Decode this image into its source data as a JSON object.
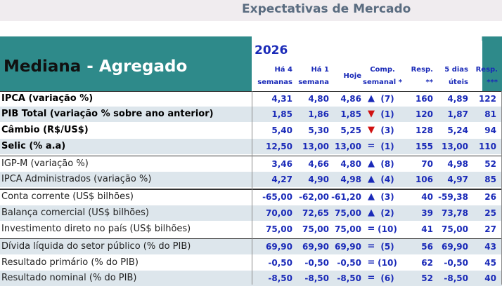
{
  "header": {
    "title": "Expectativas de Mercado",
    "mediana_prefix": "Mediana",
    "dash": "-",
    "agregado": "Agregado",
    "year": "2026",
    "columns": [
      {
        "line1": "Há 4",
        "line2": "semanas"
      },
      {
        "line1": "Há 1",
        "line2": "semana"
      },
      {
        "line1": "Hoje",
        "line2": ""
      },
      {
        "line1": "Comp.",
        "line2": "semanal *"
      },
      {
        "line1": "Resp.",
        "line2": "**"
      },
      {
        "line1": "5 dias",
        "line2": "úteis"
      },
      {
        "line1": "Resp.",
        "line2": "***"
      }
    ]
  },
  "colors": {
    "teal": "#2e8a8a",
    "value_blue": "#1a2ab8",
    "row_shade": "#dde6ec",
    "arrow_up": "#1a2ab8",
    "arrow_down": "#d01010"
  },
  "rows": [
    {
      "label": "IPCA (variação %)",
      "h4": "4,31",
      "h1": "4,80",
      "hoje": "4,86",
      "trend": "up",
      "comp": "(7)",
      "resp": "160",
      "d5": "4,89",
      "resp2": "122"
    },
    {
      "label": "PIB Total (variação % sobre ano anterior)",
      "h4": "1,85",
      "h1": "1,86",
      "hoje": "1,85",
      "trend": "down",
      "comp": "(1)",
      "resp": "120",
      "d5": "1,87",
      "resp2": "81"
    },
    {
      "label": "Câmbio (R$/US$)",
      "h4": "5,40",
      "h1": "5,30",
      "hoje": "5,25",
      "trend": "down",
      "comp": "(3)",
      "resp": "128",
      "d5": "5,24",
      "resp2": "94"
    },
    {
      "label": "Selic (% a.a)",
      "h4": "12,50",
      "h1": "13,00",
      "hoje": "13,00",
      "trend": "eq",
      "comp": "(1)",
      "resp": "155",
      "d5": "13,00",
      "resp2": "110"
    },
    {
      "label": "IGP-M (variação %)",
      "h4": "3,46",
      "h1": "4,66",
      "hoje": "4,80",
      "trend": "up",
      "comp": "(8)",
      "resp": "70",
      "d5": "4,98",
      "resp2": "52"
    },
    {
      "label": "IPCA Administrados (variação %)",
      "h4": "4,27",
      "h1": "4,90",
      "hoje": "4,98",
      "trend": "up",
      "comp": "(4)",
      "resp": "106",
      "d5": "4,97",
      "resp2": "85"
    },
    {
      "label": "Conta corrente (US$ bilhões)",
      "h4": "-65,00",
      "h1": "-62,00",
      "hoje": "-61,20",
      "trend": "up",
      "comp": "(3)",
      "resp": "40",
      "d5": "-59,38",
      "resp2": "26"
    },
    {
      "label": "Balança comercial (US$ bilhões)",
      "h4": "70,00",
      "h1": "72,65",
      "hoje": "75,00",
      "trend": "up",
      "comp": "(2)",
      "resp": "39",
      "d5": "73,78",
      "resp2": "25"
    },
    {
      "label": "Investimento direto no país (US$ bilhões)",
      "h4": "75,00",
      "h1": "75,00",
      "hoje": "75,00",
      "trend": "eq",
      "comp": "(10)",
      "resp": "41",
      "d5": "75,00",
      "resp2": "27"
    },
    {
      "label": "Dívida líquida do setor público (% do PIB)",
      "h4": "69,90",
      "h1": "69,90",
      "hoje": "69,90",
      "trend": "eq",
      "comp": "(5)",
      "resp": "56",
      "d5": "69,90",
      "resp2": "43"
    },
    {
      "label": "Resultado primário (% do PIB)",
      "h4": "-0,50",
      "h1": "-0,50",
      "hoje": "-0,50",
      "trend": "eq",
      "comp": "(10)",
      "resp": "62",
      "d5": "-0,50",
      "resp2": "45"
    },
    {
      "label": "Resultado nominal (% do PIB)",
      "h4": "-8,50",
      "h1": "-8,50",
      "hoje": "-8,50",
      "trend": "eq",
      "comp": "(6)",
      "resp": "52",
      "d5": "-8,50",
      "resp2": "40"
    }
  ]
}
